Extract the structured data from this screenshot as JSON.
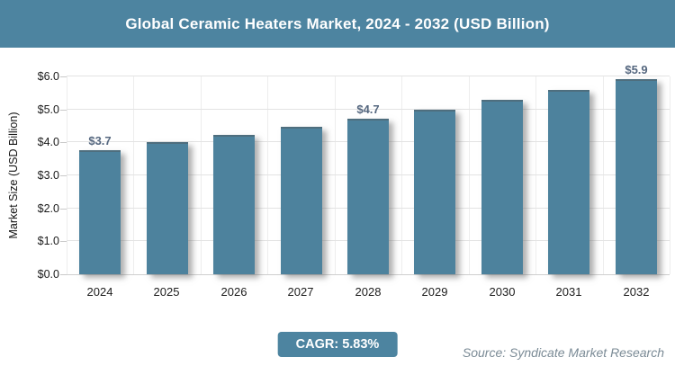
{
  "header": {
    "title": "Global Ceramic Heaters Market, 2024 - 2032 (USD Billion)"
  },
  "chart_data": {
    "type": "bar",
    "title": "Global Ceramic Heaters Market, 2024 - 2032 (USD Billion)",
    "categories": [
      "2024",
      "2025",
      "2026",
      "2027",
      "2028",
      "2029",
      "2030",
      "2031",
      "2032"
    ],
    "values": [
      3.7,
      3.95,
      4.18,
      4.42,
      4.67,
      4.94,
      5.23,
      5.53,
      5.87
    ],
    "bar_labels": [
      "$3.7",
      "",
      "",
      "",
      "$4.7",
      "",
      "",
      "",
      "$5.9"
    ],
    "xlabel": "",
    "ylabel": "Market Size (USD Billion)",
    "ylim": [
      0,
      6
    ],
    "yticks": [
      "$0.0",
      "$1.0",
      "$2.0",
      "$3.0",
      "$4.0",
      "$5.0",
      "$6.0"
    ],
    "grid": "horizontal and vertical light gray",
    "legend": "none",
    "bar_color": "#4d829d"
  },
  "footer": {
    "cagr_label": "CAGR: 5.83%",
    "source": "Source: Syndicate Market Research"
  },
  "colors": {
    "accent": "#4d84a0",
    "bar": "#4d829d",
    "bar_label_text": "#55677f",
    "source_text": "#7b8b96",
    "gridline": "#e3e3e3"
  }
}
